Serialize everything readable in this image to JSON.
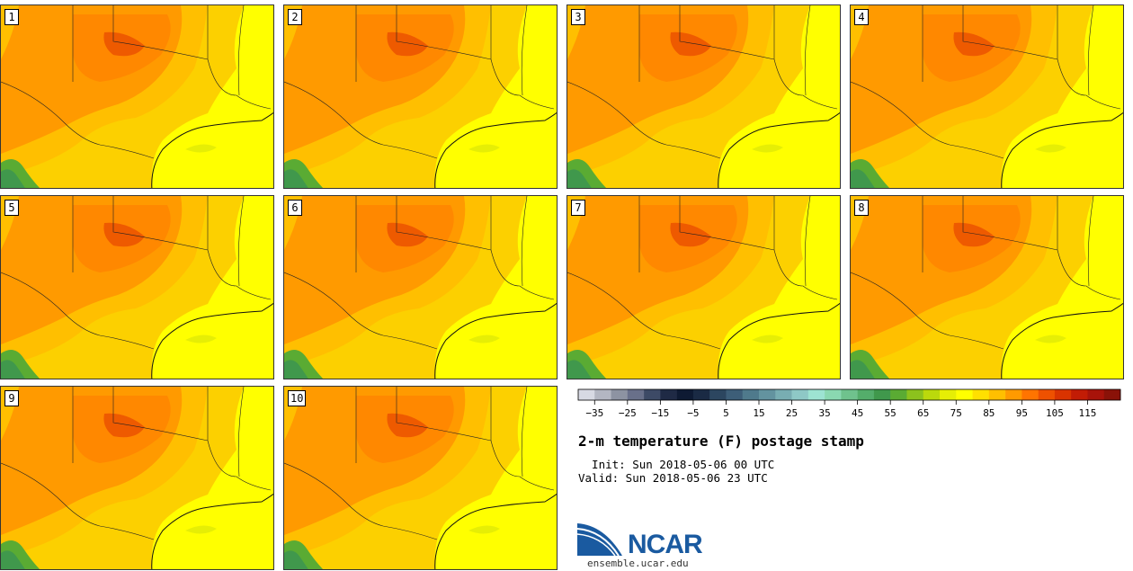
{
  "panels": [
    {
      "label": "1"
    },
    {
      "label": "2"
    },
    {
      "label": "3"
    },
    {
      "label": "4"
    },
    {
      "label": "5"
    },
    {
      "label": "6"
    },
    {
      "label": "7"
    },
    {
      "label": "8"
    },
    {
      "label": "9"
    },
    {
      "label": "10"
    }
  ],
  "legend": {
    "colors": [
      "#d7d9e3",
      "#b3b6c2",
      "#8d93a2",
      "#69708a",
      "#3d4a66",
      "#1f2a45",
      "#0e1a33",
      "#1a2a44",
      "#2c4660",
      "#3d5e78",
      "#4f7a8c",
      "#63939f",
      "#78adb2",
      "#8ec8c6",
      "#9de3d2",
      "#8ad8b1",
      "#6fc28d",
      "#54ad6b",
      "#40984c",
      "#5aab33",
      "#8cc21d",
      "#bbd90c",
      "#e6ee05",
      "#ffff00",
      "#ffe000",
      "#ffbf00",
      "#ff9a00",
      "#ff7400",
      "#ee5100",
      "#d93300",
      "#c21c05",
      "#a8130a",
      "#8a1208"
    ],
    "ticks": [
      "−35",
      "−25",
      "−15",
      "−5",
      "5",
      "15",
      "25",
      "35",
      "45",
      "55",
      "65",
      "75",
      "85",
      "95",
      "105",
      "115"
    ]
  },
  "title": "2-m temperature (F) postage stamp",
  "init": "  Init: Sun 2018-05-06 00 UTC",
  "valid": "Valid: Sun 2018-05-06 23 UTC",
  "logo": {
    "text": "NCAR",
    "url": "ensemble.ucar.edu"
  }
}
